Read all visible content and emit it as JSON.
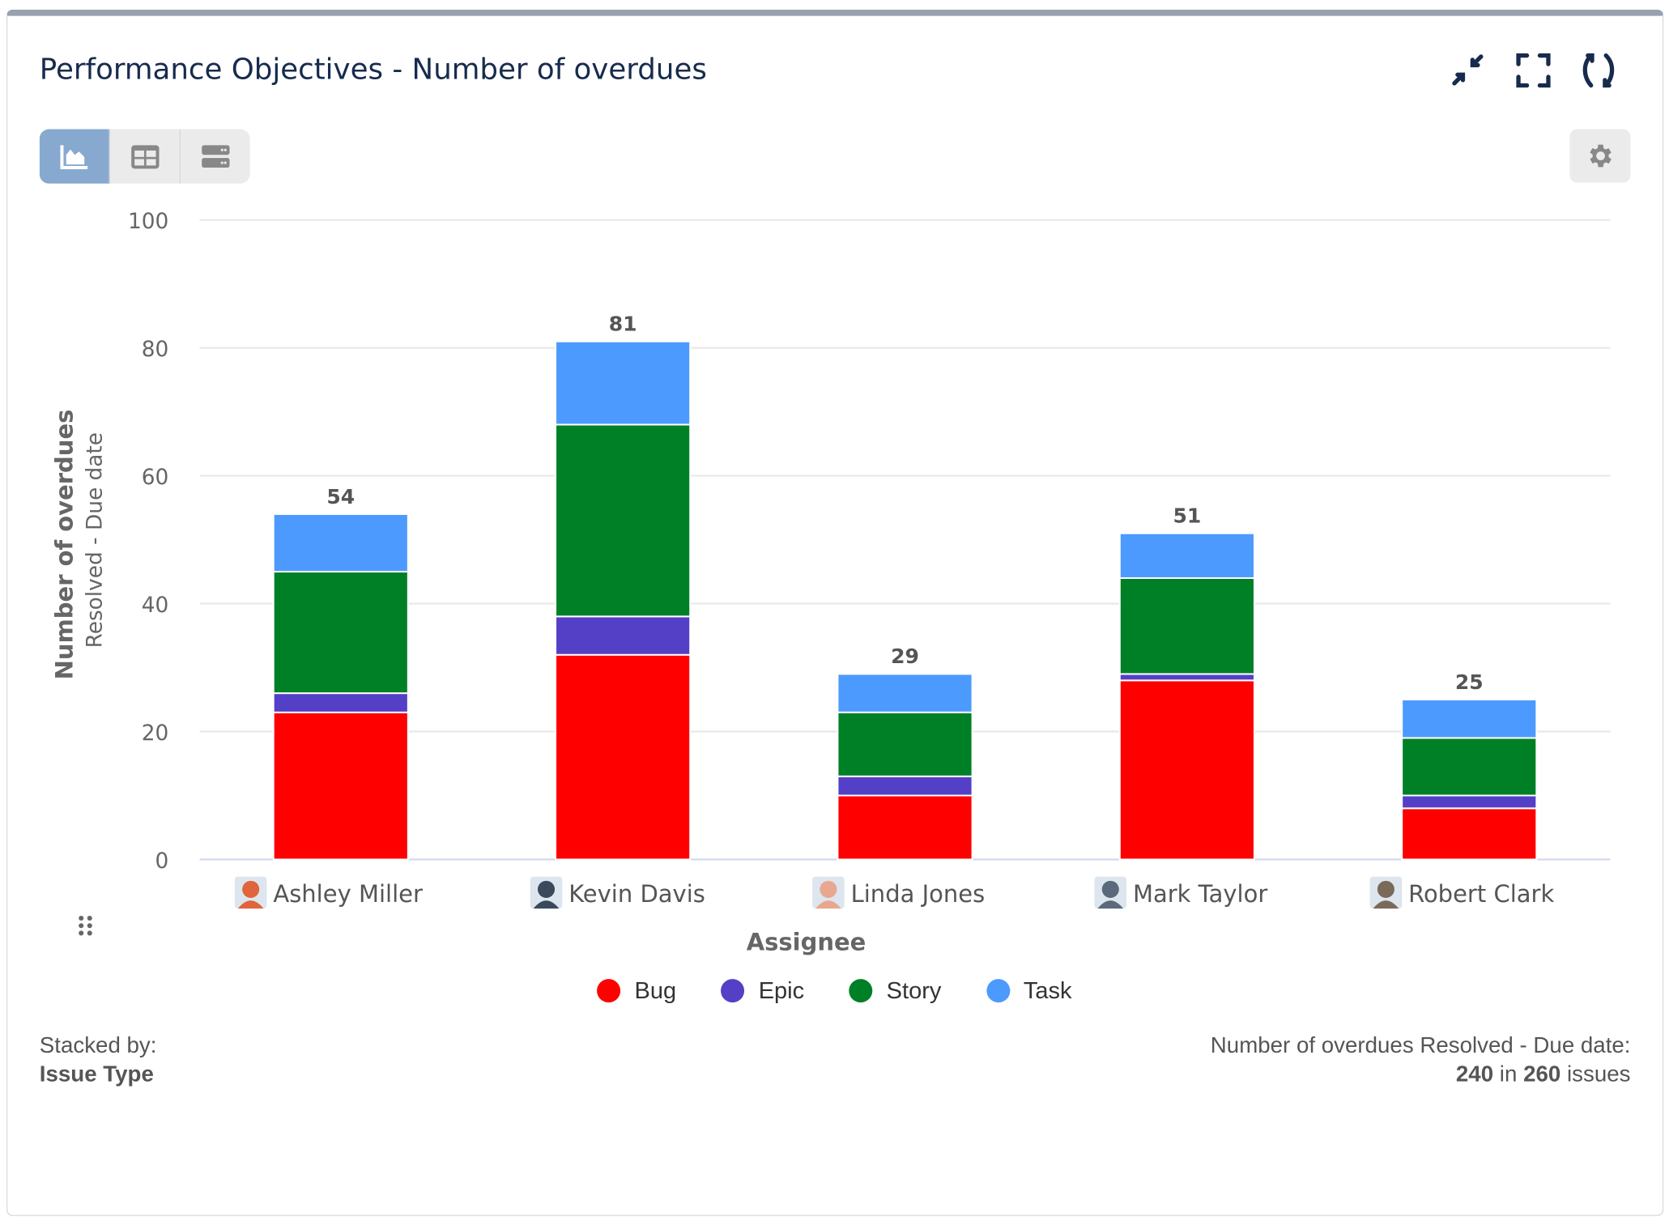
{
  "header": {
    "title": "Performance Objectives - Number of overdues",
    "icons": [
      "minimize-icon",
      "fullscreen-icon",
      "refresh-icon"
    ]
  },
  "view_tabs": [
    {
      "icon": "chart-icon",
      "active": true
    },
    {
      "icon": "table-icon",
      "active": false
    },
    {
      "icon": "list-icon",
      "active": false
    }
  ],
  "settings_icon": "gear-icon",
  "colors": {
    "Bug": "#ff0000",
    "Epic": "#5340c6",
    "Story": "#008026",
    "Task": "#4c9afe"
  },
  "chart_data": {
    "type": "bar",
    "stacked": true,
    "categories": [
      "Ashley Miller",
      "Kevin Davis",
      "Linda Jones",
      "Mark Taylor",
      "Robert Clark"
    ],
    "series": [
      {
        "name": "Bug",
        "values": [
          23,
          32,
          10,
          28,
          8
        ]
      },
      {
        "name": "Epic",
        "values": [
          3,
          6,
          3,
          1,
          2
        ]
      },
      {
        "name": "Story",
        "values": [
          19,
          30,
          10,
          15,
          9
        ]
      },
      {
        "name": "Task",
        "values": [
          9,
          13,
          6,
          7,
          6
        ]
      }
    ],
    "totals": [
      54,
      81,
      29,
      51,
      25
    ],
    "xlabel": "Assignee",
    "ylabel": "Number of overdues",
    "ylabel2": "Resolved - Due date",
    "ylim": [
      0,
      100
    ],
    "yticks": [
      0,
      20,
      40,
      60,
      80,
      100
    ],
    "grid": true,
    "legend": "bottom"
  },
  "footer": {
    "stacked_by_label": "Stacked by:",
    "stacked_by_value": "Issue Type",
    "summary_label": "Number of overdues Resolved - Due date:",
    "count": "240",
    "in": "in",
    "total": "260",
    "issues": "issues"
  }
}
